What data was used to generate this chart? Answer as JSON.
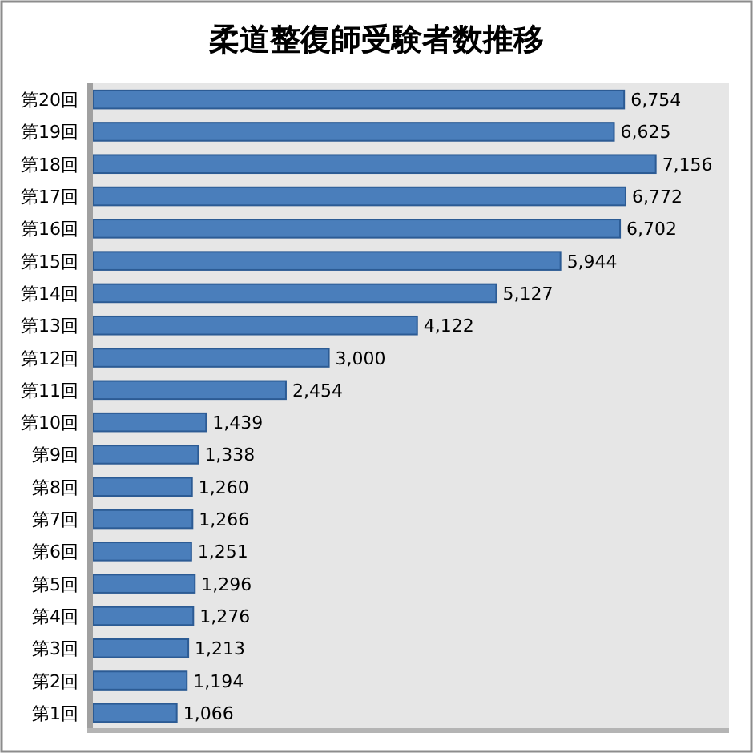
{
  "chart_data": {
    "type": "bar",
    "orientation": "horizontal",
    "title": "柔道整復師受験者数推移",
    "categories": [
      "第20回",
      "第19回",
      "第18回",
      "第17回",
      "第16回",
      "第15回",
      "第14回",
      "第13回",
      "第12回",
      "第11回",
      "第10回",
      "第9回",
      "第8回",
      "第7回",
      "第6回",
      "第5回",
      "第4回",
      "第3回",
      "第2回",
      "第1回"
    ],
    "values": [
      6754,
      6625,
      7156,
      6772,
      6702,
      5944,
      5127,
      4122,
      3000,
      2454,
      1439,
      1338,
      1260,
      1266,
      1251,
      1296,
      1276,
      1213,
      1194,
      1066
    ],
    "value_labels": [
      "6,754",
      "6,625",
      "7,156",
      "6,772",
      "6,702",
      "5,944",
      "5,127",
      "4,122",
      "3,000",
      "2,454",
      "1,439",
      "1,338",
      "1,260",
      "1,266",
      "1,251",
      "1,296",
      "1,276",
      "1,213",
      "1,194",
      "1,066"
    ],
    "color": "#4a7ebb"
  }
}
